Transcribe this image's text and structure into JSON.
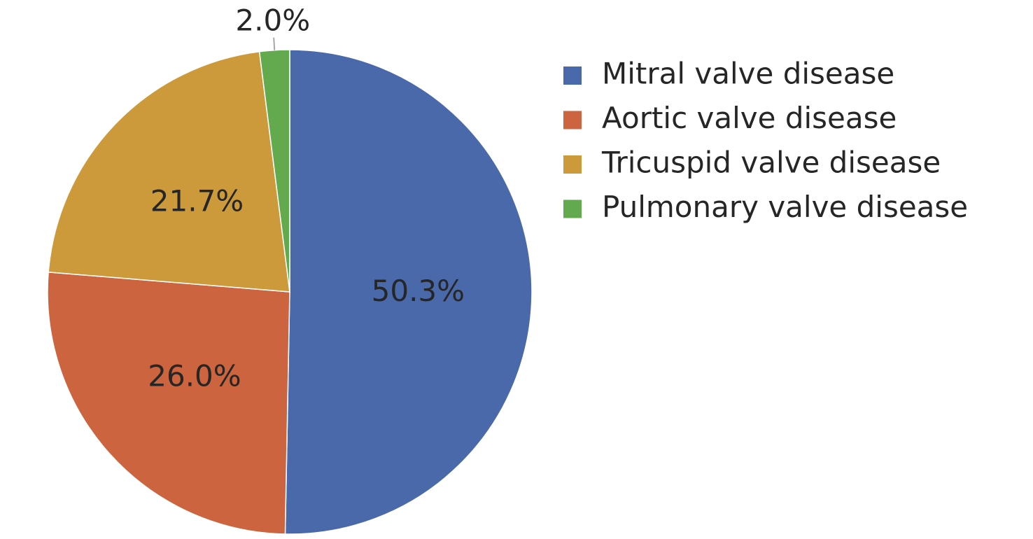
{
  "chart_data": {
    "type": "pie",
    "categories": [
      "Mitral valve disease",
      "Aortic valve disease",
      "Tricuspid valve disease",
      "Pulmonary valve disease"
    ],
    "values": [
      50.3,
      26.0,
      21.7,
      2.0
    ],
    "value_labels": [
      "50.3%",
      "26.0%",
      "21.7%",
      "2.0%"
    ],
    "colors": [
      "#4a69aa",
      "#cd6440",
      "#cc9a3b",
      "#63aa4f"
    ],
    "legend": "right"
  }
}
